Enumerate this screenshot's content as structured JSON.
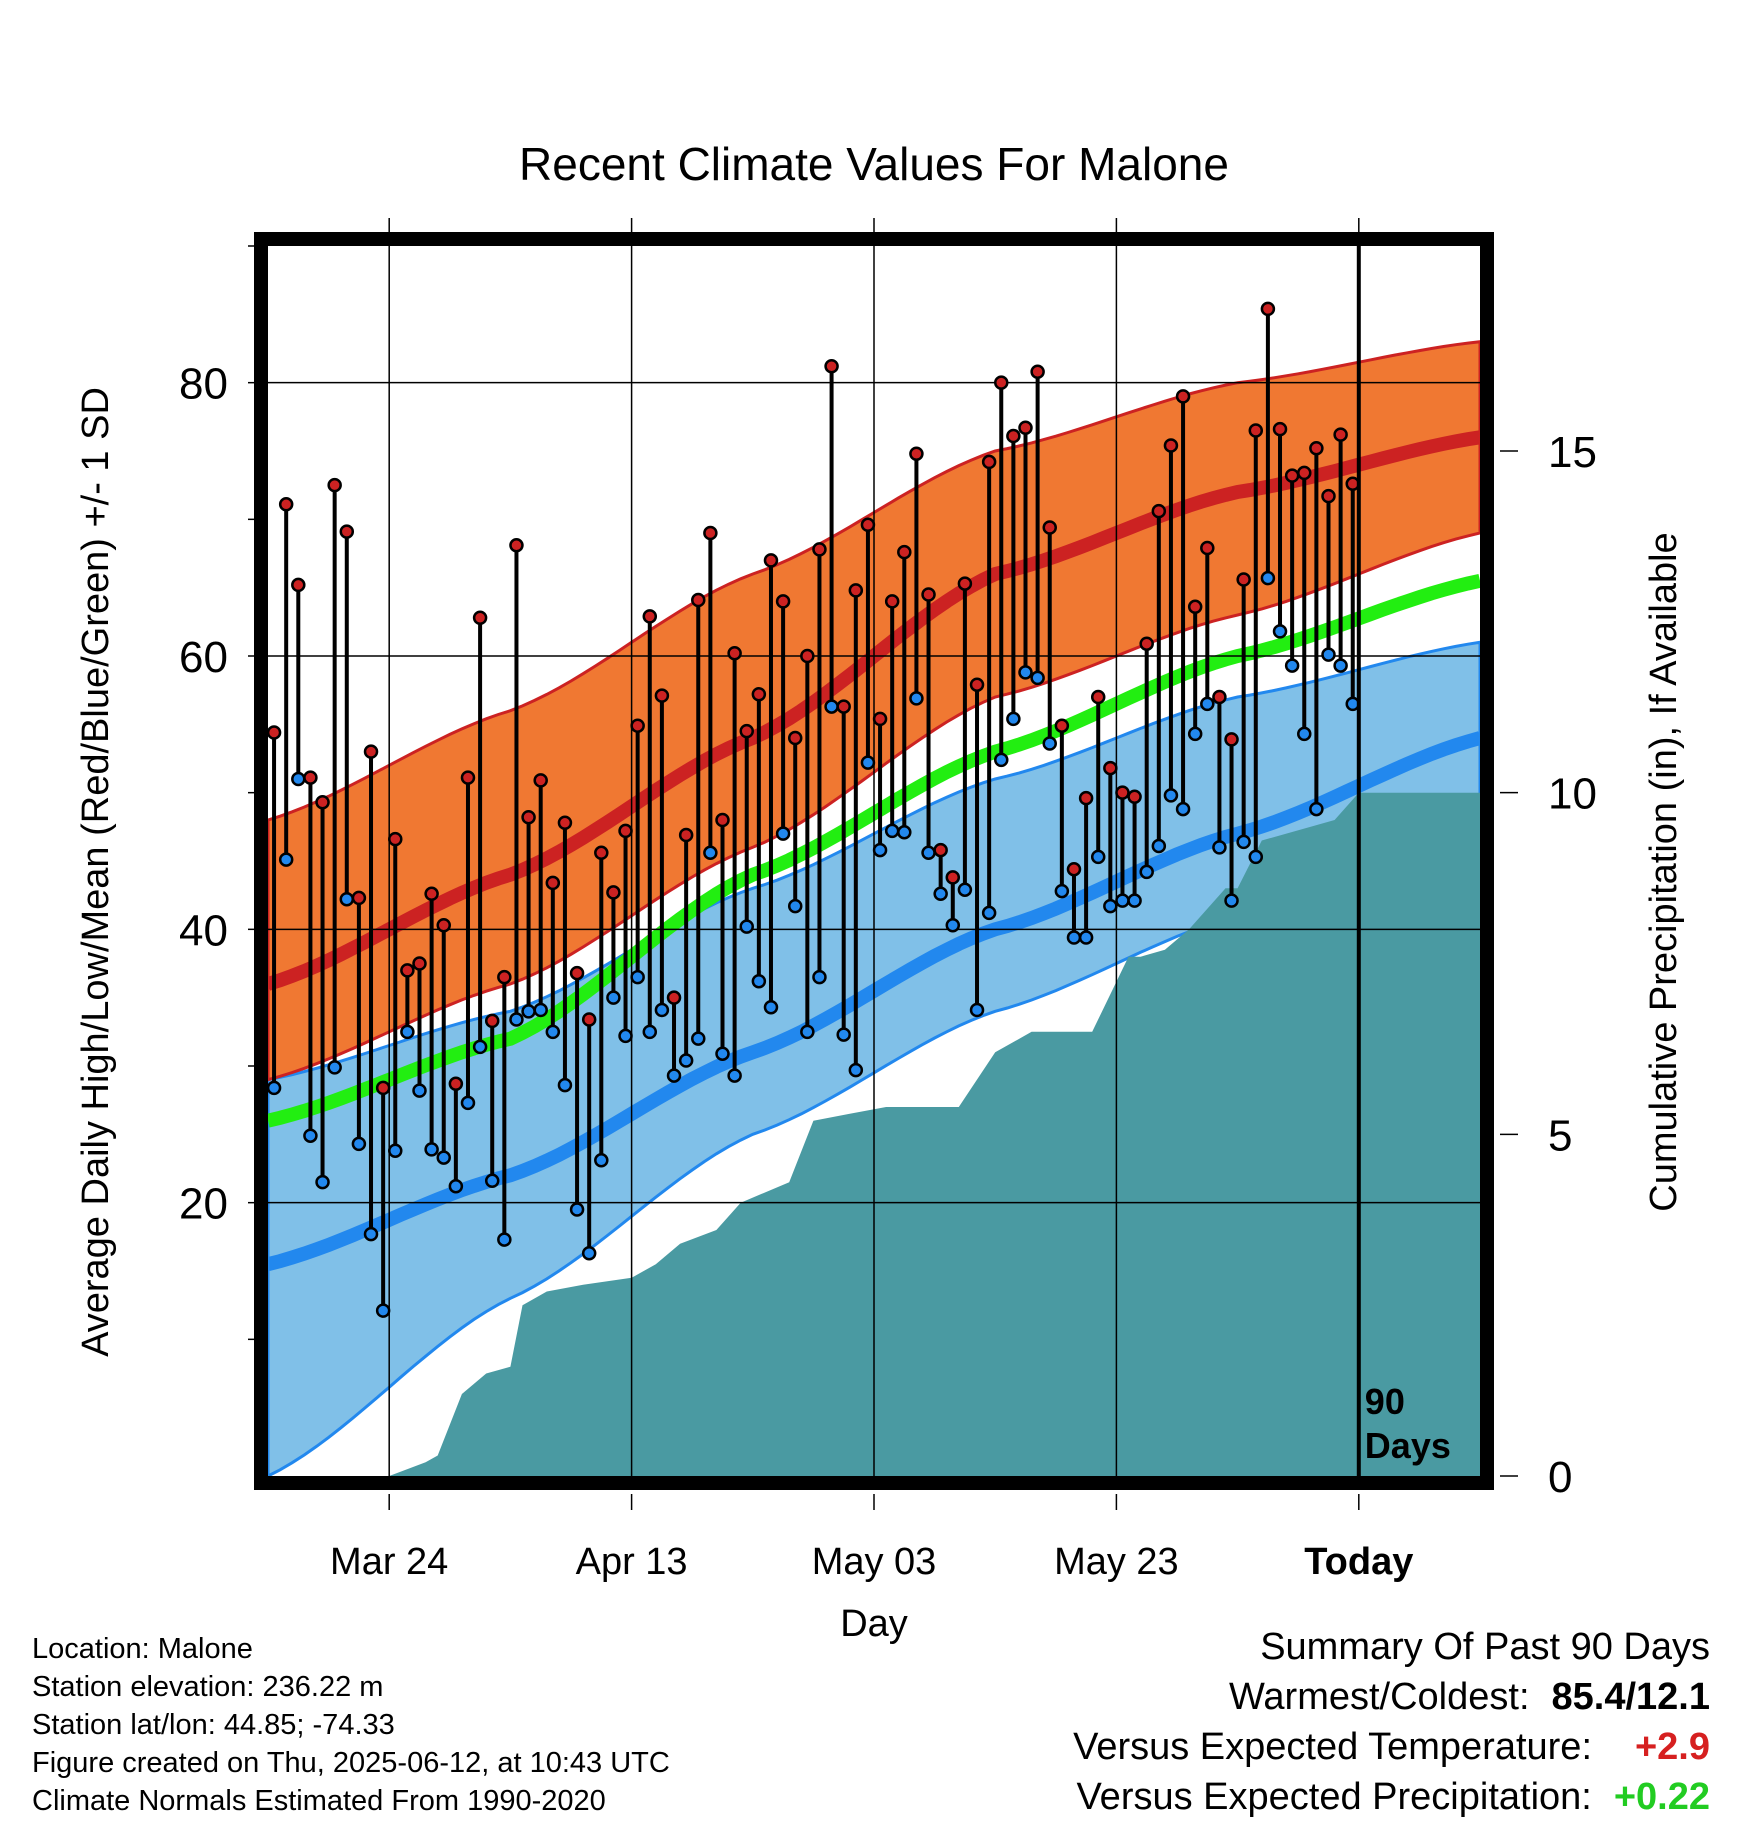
{
  "chart_data": {
    "type": "line",
    "title": "Recent Climate Values For Malone",
    "xlabel": "Day",
    "ylabel": "Average Daily High/Low/Mean (Red/Blue/Green) +/- 1 SD",
    "ylabel_right": "Cumulative Precipitation (in), If Available",
    "x_ticks": [
      "Mar 24",
      "Apr 13",
      "May 03",
      "May 23",
      "Today"
    ],
    "x_tick_days": [
      10,
      30,
      50,
      70,
      90
    ],
    "xlim": [
      0,
      100
    ],
    "ylim": [
      0,
      90
    ],
    "y_ticks": [
      20,
      40,
      60,
      80
    ],
    "y2lim": [
      0,
      18
    ],
    "y2_ticks": [
      0,
      5,
      10,
      15
    ],
    "grid": true,
    "today_label": "90\nDays",
    "normals": {
      "day": [
        0,
        20,
        40,
        60,
        80,
        100
      ],
      "high_mean": [
        36,
        44,
        54,
        66,
        72,
        76
      ],
      "high_upper": [
        48,
        56,
        66,
        75,
        80,
        83
      ],
      "high_lower": [
        29,
        36,
        46,
        57,
        63,
        69
      ],
      "avg_mean": [
        26,
        32,
        44,
        53,
        60,
        65.5
      ],
      "low_mean": [
        15.5,
        22,
        31,
        40,
        47,
        54
      ],
      "low_upper": [
        29,
        34,
        43,
        51,
        57,
        61
      ],
      "low_lower": [
        0,
        13,
        25,
        34,
        41,
        47.5
      ]
    },
    "series": [
      {
        "name": "High",
        "color": "#cc2222",
        "values": [
          54.4,
          71.1,
          65.2,
          51.1,
          49.3,
          72.5,
          69.1,
          42.3,
          53.0,
          28.4,
          46.6,
          37.0,
          37.5,
          42.6,
          40.3,
          28.7,
          51.1,
          62.8,
          33.3,
          36.5,
          68.1,
          48.2,
          50.9,
          43.4,
          47.8,
          36.8,
          33.4,
          45.6,
          42.7,
          47.2,
          54.9,
          62.9,
          57.1,
          35.0,
          46.9,
          64.1,
          69.0,
          48.0,
          60.2,
          54.5,
          57.2,
          67.0,
          64.0,
          54.0,
          60.0,
          67.8,
          81.2,
          56.3,
          64.8,
          69.6,
          55.4,
          64.0,
          67.6,
          74.8,
          64.5,
          45.8,
          43.8,
          65.3,
          57.9,
          74.2,
          80.0,
          76.1,
          76.7,
          80.8,
          69.4,
          54.9,
          44.4,
          49.6,
          57.0,
          51.8,
          50.0,
          49.7,
          60.9,
          70.6,
          75.4,
          79.0,
          63.6,
          67.9,
          57.0,
          53.9,
          65.6,
          76.5,
          85.4,
          76.6,
          73.2,
          73.4,
          75.2,
          71.7,
          76.2,
          72.6
        ]
      },
      {
        "name": "Low",
        "color": "#2288ee",
        "values": [
          28.4,
          45.1,
          51.0,
          24.9,
          21.5,
          29.9,
          42.2,
          24.3,
          17.7,
          12.1,
          23.8,
          32.5,
          28.2,
          23.9,
          23.3,
          21.2,
          27.3,
          31.4,
          21.6,
          17.3,
          33.4,
          34.0,
          34.1,
          32.5,
          28.6,
          19.5,
          16.3,
          23.1,
          35.0,
          32.2,
          36.5,
          32.5,
          34.1,
          29.3,
          30.4,
          32.0,
          45.6,
          30.9,
          29.3,
          40.2,
          36.2,
          34.3,
          47.0,
          41.7,
          32.5,
          36.5,
          56.3,
          32.3,
          29.7,
          52.2,
          45.8,
          47.2,
          47.1,
          56.9,
          45.6,
          42.6,
          40.3,
          42.9,
          34.1,
          41.2,
          52.4,
          55.4,
          58.8,
          58.4,
          53.6,
          42.8,
          39.4,
          39.4,
          45.3,
          41.7,
          42.1,
          42.1,
          44.2,
          46.1,
          49.8,
          48.8,
          54.3,
          56.5,
          46.0,
          42.1,
          46.4,
          45.3,
          65.7,
          61.8,
          59.3,
          54.3,
          48.8,
          60.1,
          59.3,
          56.5
        ]
      }
    ],
    "precip_cumulative": {
      "day": [
        0,
        10,
        13,
        14,
        16,
        18,
        20,
        21,
        23,
        26,
        30,
        32,
        34,
        37,
        39,
        43,
        45,
        48,
        51,
        57,
        60,
        63,
        68,
        71,
        72,
        74,
        76,
        79,
        80,
        82,
        88,
        90,
        100
      ],
      "values": [
        0,
        0,
        0.2,
        0.3,
        1.2,
        1.5,
        1.6,
        2.5,
        2.7,
        2.8,
        2.9,
        3.1,
        3.4,
        3.6,
        4.0,
        4.3,
        5.2,
        5.3,
        5.4,
        5.4,
        6.2,
        6.5,
        6.5,
        7.6,
        7.6,
        7.7,
        8.0,
        8.6,
        8.6,
        9.3,
        9.6,
        10.0,
        10.0
      ]
    }
  },
  "info": {
    "location": "Location: Malone",
    "elevation": "Station elevation: 236.22 m",
    "latlon": "Station lat/lon: 44.85; -74.33",
    "created": "Figure created on Thu, 2025-06-12, at 10:43 UTC",
    "normals": "Climate Normals Estimated From 1990-2020"
  },
  "summary": {
    "title": "Summary Of Past 90 Days",
    "warmest_label": "Warmest/Coldest:",
    "warmest_value": "85.4/12.1",
    "temp_label": "Versus Expected Temperature:",
    "temp_value": "+2.9",
    "temp_color": "#d62020",
    "precip_label": "Versus Expected Precipitation:",
    "precip_value": "+0.22",
    "precip_color": "#22cc22"
  },
  "colors": {
    "high_band": "#f07832",
    "high_line": "#cc2222",
    "low_band": "#80c0e8",
    "low_line": "#2288ee",
    "avg_line": "#22ee11",
    "precip": "#4a9aa2"
  }
}
